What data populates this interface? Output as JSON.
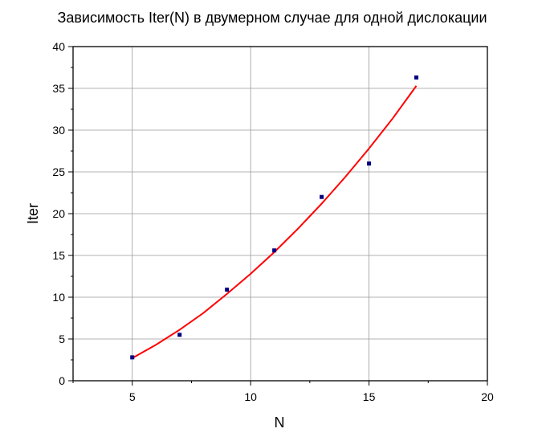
{
  "chart_data": {
    "type": "scatter",
    "title": "Зависимость Iter(N) в двумерном случае для одной дислокации",
    "xlabel": "N",
    "ylabel": "Iter",
    "xlim": [
      2.5,
      20
    ],
    "ylim": [
      0,
      40
    ],
    "x_ticks": [
      5,
      10,
      15,
      20
    ],
    "y_ticks": [
      0,
      5,
      10,
      15,
      20,
      25,
      30,
      35,
      40
    ],
    "grid": true,
    "colors": {
      "points": "#000080",
      "fit": "#ff0000",
      "grid": "#9a9a9a",
      "axis": "#000000"
    },
    "series": [
      {
        "type": "scatter",
        "x": [
          5,
          7,
          9,
          11,
          13,
          15,
          17
        ],
        "y": [
          2.8,
          5.5,
          10.9,
          15.6,
          22.0,
          26.0,
          36.3
        ]
      },
      {
        "type": "line",
        "x": [
          5,
          6,
          7,
          8,
          9,
          10,
          11,
          12,
          13,
          14,
          15,
          16,
          17
        ],
        "y": [
          2.7,
          4.3,
          6.1,
          8.1,
          10.4,
          12.8,
          15.4,
          18.2,
          21.2,
          24.4,
          27.8,
          31.4,
          35.3
        ]
      }
    ]
  }
}
